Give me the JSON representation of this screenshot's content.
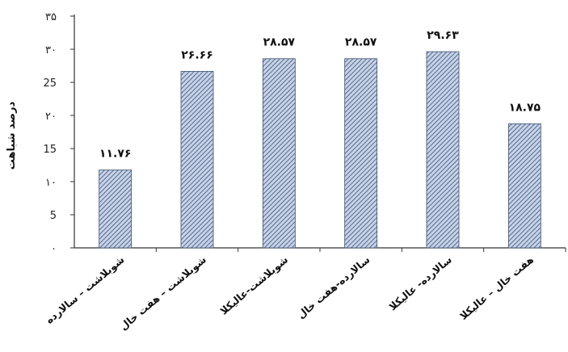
{
  "chart_data": {
    "type": "bar",
    "ylabel": "درصد شباهت",
    "ylim": [
      0,
      35
    ],
    "yticks": [
      "۰",
      "5",
      "۱۰",
      "15",
      "۲۰",
      "25",
      "۳۰",
      "۳۵"
    ],
    "yticks_values": [
      0,
      5,
      10,
      15,
      20,
      25,
      30,
      35
    ],
    "categories": [
      "شوبلاشت – سالارده",
      "شوبلاشت – هفت خال",
      "شوبلاشت-عالیکلا",
      "سالارده-هفت خال",
      "سالارده- عالیکلا",
      "هفت خال – عالیکلا"
    ],
    "values": [
      11.76,
      26.66,
      28.57,
      28.57,
      29.63,
      18.75
    ],
    "data_labels": [
      "۱۱.۷۶",
      "۲۶.۶۶",
      "۲۸.۵۷",
      "۲۸.۵۷",
      "۲۹.۶۳",
      "۱۸.۷۵"
    ],
    "grid": false,
    "colors": {
      "bar_fill": "#c6d3e8",
      "bar_hatch": "#3d4f73",
      "axis": "#333333"
    }
  }
}
